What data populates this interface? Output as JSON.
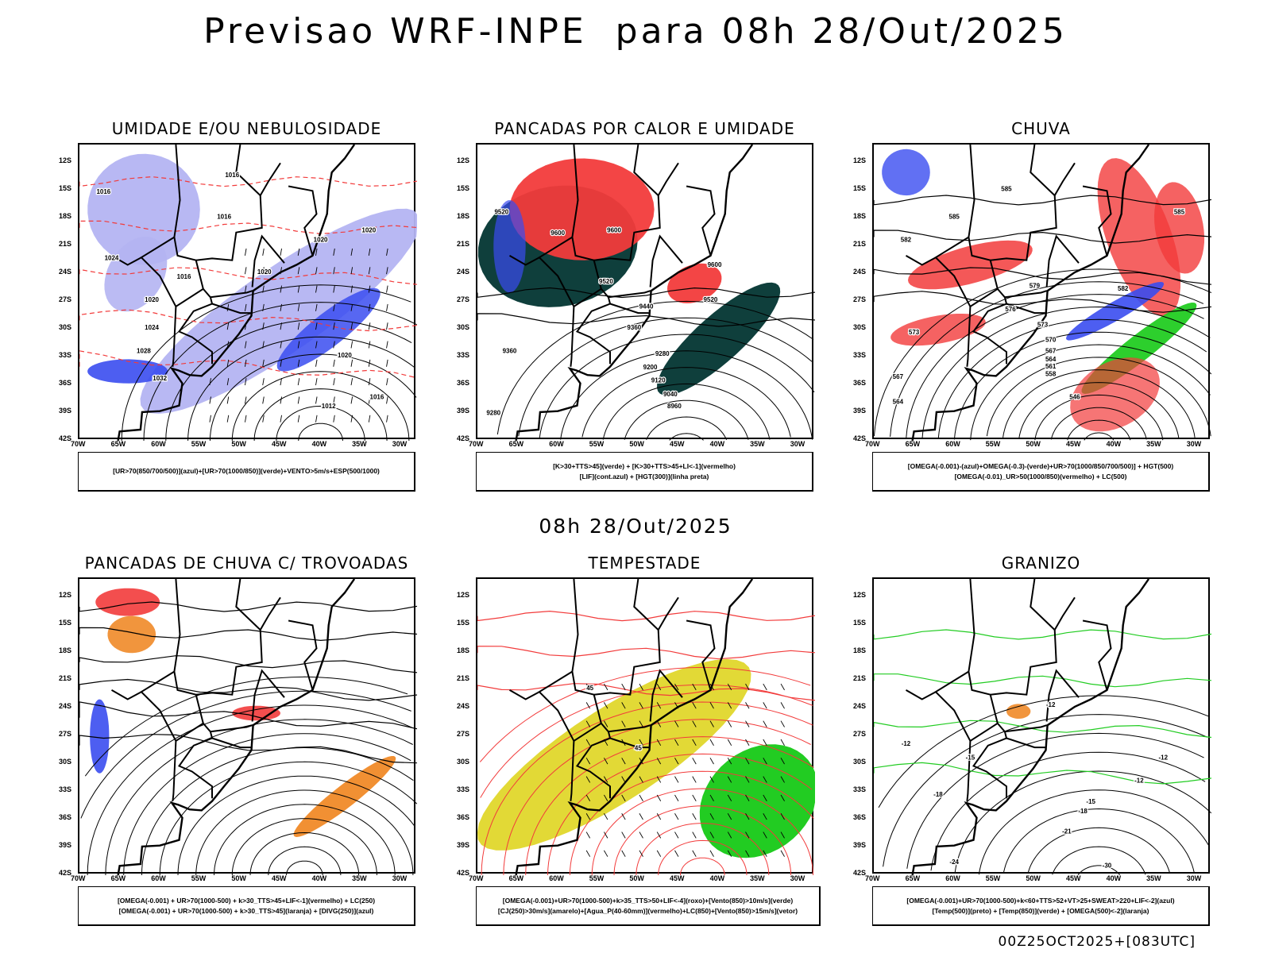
{
  "title": "Previsao WRF-INPE  para 08h 28/Out/2025",
  "subtitle": "08h 28/Out/2025",
  "footer": "00Z25OCT2025+[083UTC]",
  "axes": {
    "lat_ticks": [
      "12S",
      "15S",
      "18S",
      "21S",
      "24S",
      "27S",
      "30S",
      "33S",
      "36S",
      "39S",
      "42S"
    ],
    "lat_values": [
      -12,
      -15,
      -18,
      -21,
      -24,
      -27,
      -30,
      -33,
      -36,
      -39,
      -42
    ],
    "lon_ticks": [
      "70W",
      "65W",
      "60W",
      "55W",
      "50W",
      "45W",
      "40W",
      "35W",
      "30W"
    ],
    "lon_values": [
      -70,
      -65,
      -60,
      -55,
      -50,
      -45,
      -40,
      -35,
      -30
    ]
  },
  "colors": {
    "lavender": "#b4b4f2",
    "blue": "#3a4cf0",
    "green": "#22cc22",
    "red": "#f23b3b",
    "teal": "#0f3f3c",
    "yellow": "#e2d936",
    "orange": "#f08a28",
    "purple": "#9a1fb0"
  },
  "panels": [
    {
      "title": "UMIDADE E/OU NEBULOSIDADE",
      "caption": [
        "[UR>70(850/700/500)](azul)+[UR>70(1000/850)](verde)+VENTO>5m/s+ESP(500/1000)"
      ],
      "labels": [
        {
          "t": "1016",
          "lon": -51,
          "lat": -13.5
        },
        {
          "t": "1016",
          "lon": -67,
          "lat": -15.3
        },
        {
          "t": "1016",
          "lon": -52,
          "lat": -18
        },
        {
          "t": "1020",
          "lon": -40,
          "lat": -20.5
        },
        {
          "t": "1020",
          "lon": -34,
          "lat": -19.5
        },
        {
          "t": "1020",
          "lon": -47,
          "lat": -24
        },
        {
          "t": "1016",
          "lon": -57,
          "lat": -24.5
        },
        {
          "t": "1020",
          "lon": -61,
          "lat": -27
        },
        {
          "t": "1024",
          "lon": -61,
          "lat": -30
        },
        {
          "t": "1028",
          "lon": -62,
          "lat": -32.5
        },
        {
          "t": "1032",
          "lon": -60,
          "lat": -35.5
        },
        {
          "t": "1020",
          "lon": -37,
          "lat": -33
        },
        {
          "t": "1016",
          "lon": -33,
          "lat": -37.5
        },
        {
          "t": "1012",
          "lon": -39,
          "lat": -38.5
        },
        {
          "t": "1024",
          "lon": -66,
          "lat": -22.5
        }
      ]
    },
    {
      "title": "PANCADAS POR CALOR E UMIDADE",
      "caption": [
        "[K>30+TTS>45](verde) + [K>30+TTS>45+LI<-1](vermelho)",
        "[LIF](cont.azul) + [HGT(300)](linha preta)"
      ],
      "labels": [
        {
          "t": "9600",
          "lon": -53,
          "lat": -19.5
        },
        {
          "t": "9600",
          "lon": -60,
          "lat": -19.8
        },
        {
          "t": "9520",
          "lon": -67,
          "lat": -17.5
        },
        {
          "t": "9600",
          "lon": -40.5,
          "lat": -23.2
        },
        {
          "t": "9520",
          "lon": -54,
          "lat": -25
        },
        {
          "t": "9520",
          "lon": -41,
          "lat": -27
        },
        {
          "t": "9440",
          "lon": -49,
          "lat": -27.7
        },
        {
          "t": "9360",
          "lon": -50.5,
          "lat": -30
        },
        {
          "t": "9360",
          "lon": -66,
          "lat": -32.5
        },
        {
          "t": "9280",
          "lon": -47,
          "lat": -32.8
        },
        {
          "t": "9200",
          "lon": -48.5,
          "lat": -34.3
        },
        {
          "t": "9120",
          "lon": -47.5,
          "lat": -35.7
        },
        {
          "t": "9040",
          "lon": -46,
          "lat": -37.2
        },
        {
          "t": "8960",
          "lon": -45.5,
          "lat": -38.5
        },
        {
          "t": "9280",
          "lon": -68,
          "lat": -39.2
        }
      ]
    },
    {
      "title": "CHUVA",
      "caption": [
        "[OMEGA(-0.001)-(azul)+OMEGA(-0.3)-(verde)+UR>70(1000/850/700/500)] + HGT(500)",
        "[OMEGA(-0.01)_UR>50(1000/850)(vermelho) + LC(500)"
      ],
      "labels": [
        {
          "t": "585",
          "lon": -53.5,
          "lat": -15
        },
        {
          "t": "585",
          "lon": -60,
          "lat": -18
        },
        {
          "t": "585",
          "lon": -32,
          "lat": -17.5
        },
        {
          "t": "582",
          "lon": -66,
          "lat": -20.5
        },
        {
          "t": "579",
          "lon": -50,
          "lat": -25.5
        },
        {
          "t": "582",
          "lon": -39,
          "lat": -25.8
        },
        {
          "t": "576",
          "lon": -53,
          "lat": -28
        },
        {
          "t": "573",
          "lon": -49,
          "lat": -29.7
        },
        {
          "t": "573",
          "lon": -65,
          "lat": -30.5
        },
        {
          "t": "570",
          "lon": -48,
          "lat": -31.3
        },
        {
          "t": "567",
          "lon": -48,
          "lat": -32.5
        },
        {
          "t": "564",
          "lon": -48,
          "lat": -33.4
        },
        {
          "t": "561",
          "lon": -48,
          "lat": -34.2
        },
        {
          "t": "558",
          "lon": -48,
          "lat": -35
        },
        {
          "t": "546",
          "lon": -45,
          "lat": -37.5
        },
        {
          "t": "564",
          "lon": -67,
          "lat": -38
        },
        {
          "t": "567",
          "lon": -67,
          "lat": -35.3
        }
      ]
    },
    {
      "title": "PANCADAS DE CHUVA C/ TROVOADAS",
      "caption": [
        "[OMEGA(-0.001) + UR>70(1000-500) + k>30_TTS>45+LIF<-1](vermelho) + LC(250)",
        "[OMEGA(-0.001) + UR>70(1000-500) + k>30_TTS>45](laranja) + [DIVG(250)](azul)"
      ],
      "labels": []
    },
    {
      "title": "TEMPESTADE",
      "caption": [
        "[OMEGA(-0.001)+UR>70(1000-500)+k>35_TTS>50+LIF<-4](roxo)+[Vento(850)>10m/s](verde)",
        "[CJ(250)>30m/s](amarelo)+[Agua_P(40-60mm)](vermelho)+LC(850)+[Vento(850)>15m/s](vetor)"
      ],
      "labels": [
        {
          "t": "45",
          "lon": -56,
          "lat": -22
        },
        {
          "t": "45",
          "lon": -50,
          "lat": -28.5
        }
      ]
    },
    {
      "title": "GRANIZO",
      "caption": [
        "[OMEGA(-0.001)+UR>70(1000-500)+k<60+TTS>52+VT>25+SWEAT>220+LIF<-2](azul)",
        "[Temp(500)](preto) + [Temp(850)](verde) + [OMEGA(500)<-2](laranja)"
      ],
      "labels": [
        {
          "t": "-12",
          "lon": -66,
          "lat": -28
        },
        {
          "t": "-15",
          "lon": -58,
          "lat": -29.5
        },
        {
          "t": "-18",
          "lon": -62,
          "lat": -33.5
        },
        {
          "t": "-12",
          "lon": -37,
          "lat": -32
        },
        {
          "t": "-15",
          "lon": -43,
          "lat": -34.3
        },
        {
          "t": "-18",
          "lon": -44,
          "lat": -35.3
        },
        {
          "t": "-21",
          "lon": -46,
          "lat": -37.5
        },
        {
          "t": "-24",
          "lon": -60,
          "lat": -40.8
        },
        {
          "t": "-30",
          "lon": -41,
          "lat": -41.2
        },
        {
          "t": "-12",
          "lon": -34,
          "lat": -29.5
        },
        {
          "t": "-12",
          "lon": -48,
          "lat": -23.8
        }
      ]
    }
  ]
}
